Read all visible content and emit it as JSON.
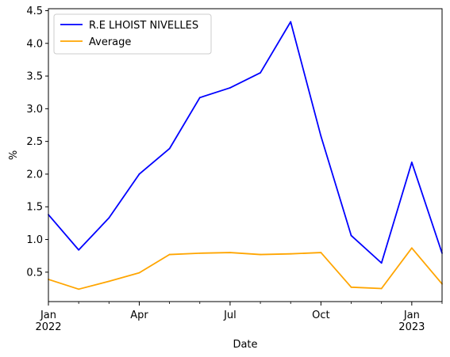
{
  "chart_data": {
    "type": "line",
    "title": "",
    "xlabel": "Date",
    "ylabel": "%",
    "x": [
      "2022-01",
      "2022-02",
      "2022-03",
      "2022-04",
      "2022-05",
      "2022-06",
      "2022-07",
      "2022-08",
      "2022-09",
      "2022-10",
      "2022-11",
      "2022-12",
      "2023-01",
      "2023-02"
    ],
    "series": [
      {
        "name": "R.E LHOIST NIVELLES",
        "color": "#0000ff",
        "values": [
          1.38,
          0.84,
          1.33,
          2.0,
          2.39,
          3.17,
          3.32,
          3.55,
          4.33,
          2.58,
          1.06,
          0.64,
          2.18,
          0.79
        ]
      },
      {
        "name": "Average",
        "color": "#ffa500",
        "values": [
          0.39,
          0.24,
          0.36,
          0.49,
          0.77,
          0.79,
          0.8,
          0.77,
          0.78,
          0.8,
          0.27,
          0.25,
          0.87,
          0.32
        ]
      }
    ],
    "ylim": [
      0.05,
      4.53
    ],
    "yticks": [
      "0.5",
      "1.0",
      "1.5",
      "2.0",
      "2.5",
      "3.0",
      "3.5",
      "4.0",
      "4.5"
    ],
    "xticks": [
      {
        "x": "2022-01",
        "label": "Jan",
        "sublabel": "2022"
      },
      {
        "x": "2022-04",
        "label": "Apr",
        "sublabel": ""
      },
      {
        "x": "2022-07",
        "label": "Jul",
        "sublabel": ""
      },
      {
        "x": "2022-10",
        "label": "Oct",
        "sublabel": ""
      },
      {
        "x": "2023-01",
        "label": "Jan",
        "sublabel": "2023"
      }
    ],
    "minor_xticks": [
      "2022-02",
      "2022-03",
      "2022-05",
      "2022-06",
      "2022-08",
      "2022-09",
      "2022-11",
      "2022-12",
      "2023-02"
    ],
    "legend": "upper-left",
    "grid": false
  }
}
